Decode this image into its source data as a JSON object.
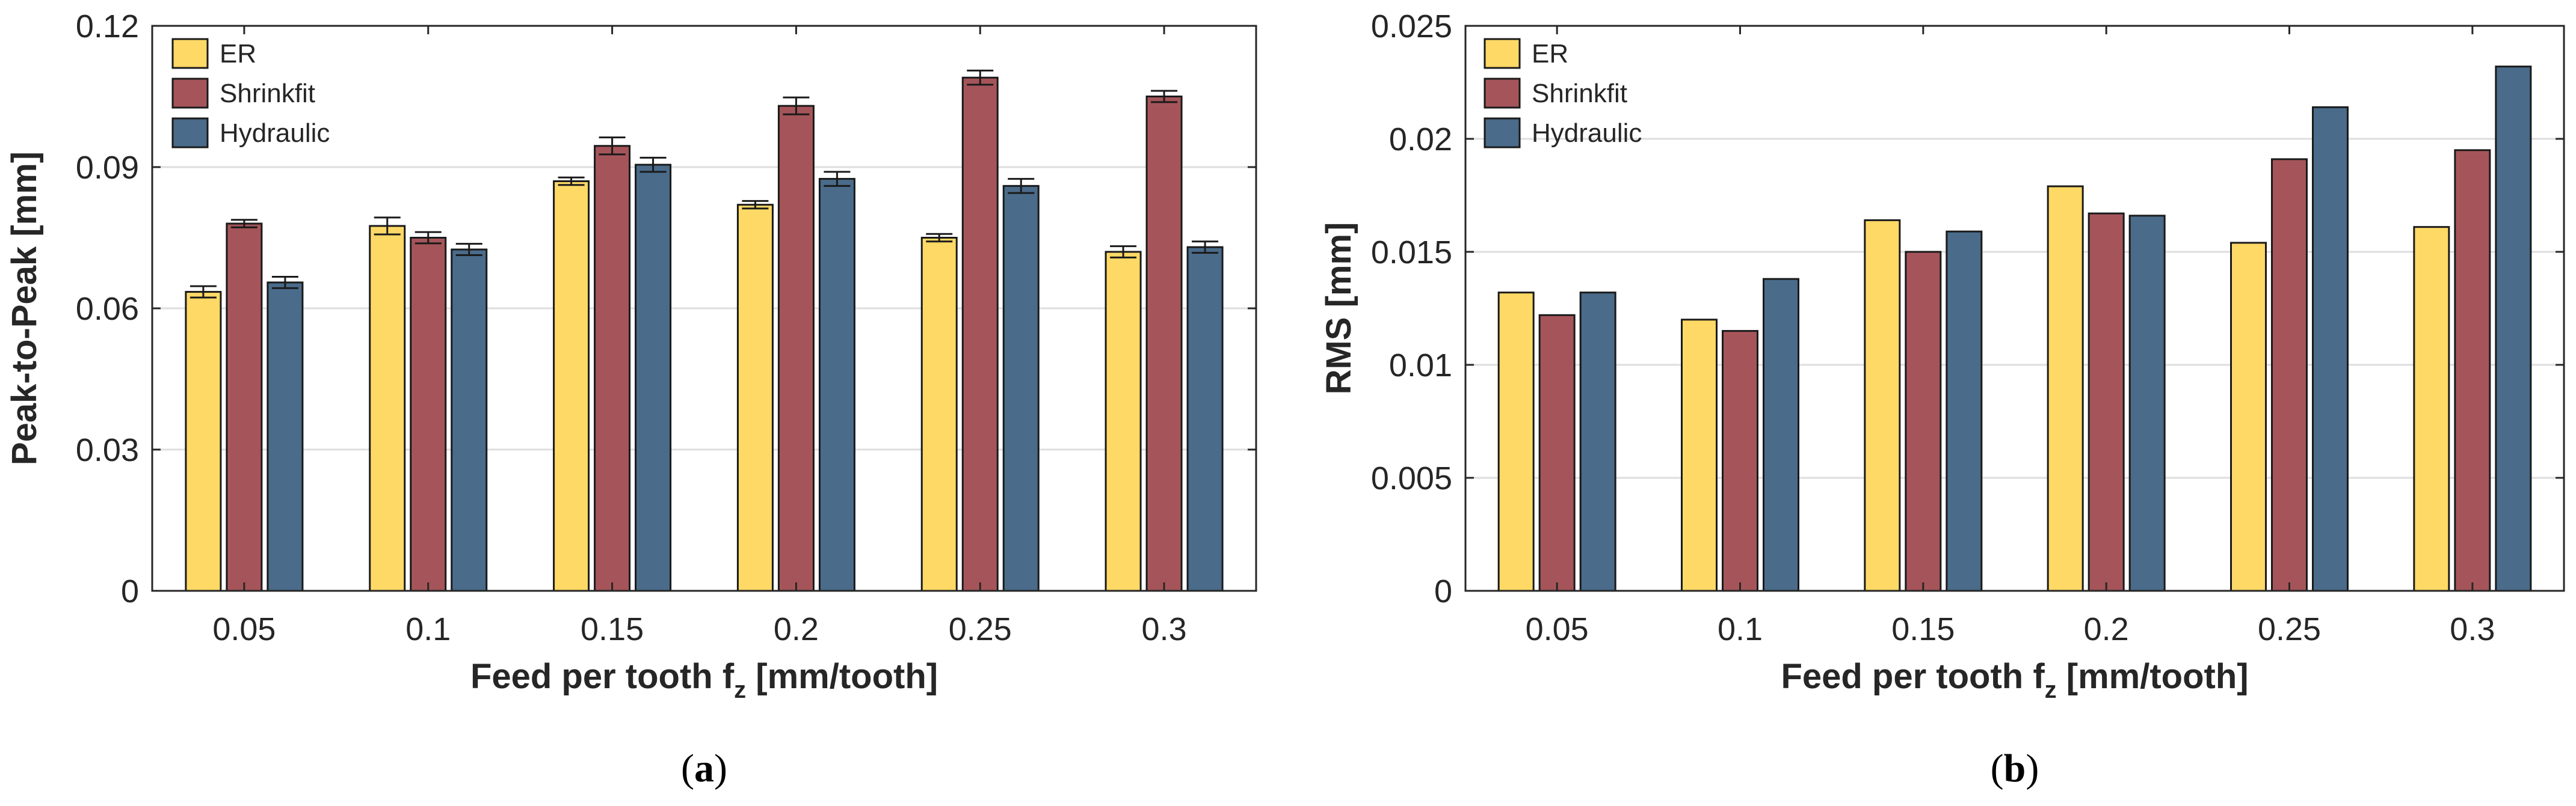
{
  "chart_data": [
    {
      "type": "bar",
      "panel_label": {
        "open": "(",
        "letter": "a",
        "close": ")"
      },
      "title": "",
      "xlabel": {
        "main": "Feed per tooth f",
        "sub": "z",
        "tail": " [mm/tooth]"
      },
      "ylabel": "Peak-to-Peak [mm]",
      "categories": [
        "0.05",
        "0.1",
        "0.15",
        "0.2",
        "0.25",
        "0.3"
      ],
      "ylim": [
        0,
        0.12
      ],
      "yticks": [
        0,
        0.03,
        0.06,
        0.09,
        0.12
      ],
      "ytick_labels": [
        "0",
        "0.03",
        "0.06",
        "0.09",
        "0.12"
      ],
      "grid": "horizontal",
      "legend_position": "top-left",
      "error_bars": true,
      "series": [
        {
          "name": "ER",
          "color": "#FFD966",
          "values": [
            0.0635,
            0.0775,
            0.087,
            0.082,
            0.075,
            0.072
          ],
          "errors": [
            0.0012,
            0.0018,
            0.0008,
            0.0008,
            0.0008,
            0.0012
          ]
        },
        {
          "name": "Shrinkfit",
          "color": "#A5555A",
          "values": [
            0.078,
            0.075,
            0.0945,
            0.103,
            0.109,
            0.105
          ],
          "errors": [
            0.0008,
            0.0012,
            0.0018,
            0.0018,
            0.0015,
            0.0012
          ]
        },
        {
          "name": "Hydraulic",
          "color": "#4A6B8A",
          "values": [
            0.0655,
            0.0725,
            0.0905,
            0.0875,
            0.086,
            0.073
          ],
          "errors": [
            0.0012,
            0.0012,
            0.0015,
            0.0015,
            0.0015,
            0.0012
          ]
        }
      ]
    },
    {
      "type": "bar",
      "panel_label": {
        "open": "(",
        "letter": "b",
        "close": ")"
      },
      "title": "",
      "xlabel": {
        "main": "Feed per tooth f",
        "sub": "z",
        "tail": " [mm/tooth]"
      },
      "ylabel": "RMS [mm]",
      "categories": [
        "0.05",
        "0.1",
        "0.15",
        "0.2",
        "0.25",
        "0.3"
      ],
      "ylim": [
        0,
        0.025
      ],
      "yticks": [
        0,
        0.005,
        0.01,
        0.015,
        0.02,
        0.025
      ],
      "ytick_labels": [
        "0",
        "0.005",
        "0.01",
        "0.015",
        "0.02",
        "0.025"
      ],
      "grid": "horizontal",
      "legend_position": "top-left",
      "error_bars": false,
      "series": [
        {
          "name": "ER",
          "color": "#FFD966",
          "values": [
            0.0132,
            0.012,
            0.0164,
            0.0179,
            0.0154,
            0.0161
          ]
        },
        {
          "name": "Shrinkfit",
          "color": "#A5555A",
          "values": [
            0.0122,
            0.0115,
            0.015,
            0.0167,
            0.0191,
            0.0195
          ]
        },
        {
          "name": "Hydraulic",
          "color": "#4A6B8A",
          "values": [
            0.0132,
            0.0138,
            0.0159,
            0.0166,
            0.0214,
            0.0232
          ]
        }
      ]
    }
  ]
}
